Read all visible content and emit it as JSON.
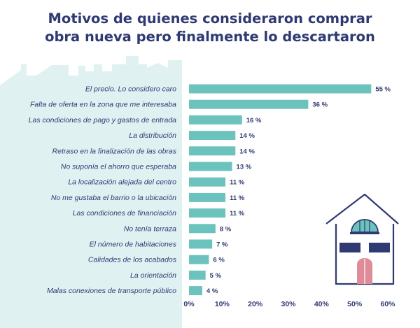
{
  "chart_data": {
    "type": "bar",
    "orientation": "horizontal",
    "title": "Motivos de quienes consideraron comprar obra nueva pero finalmente lo descartaron",
    "title_lines": [
      "Motivos de quienes consideraron comprar",
      "obra nueva pero finalmente lo descartaron"
    ],
    "categories": [
      "El precio. Lo considero caro",
      "Falta de oferta en la zona que me interesaba",
      "Las condiciones de pago y gastos de entrada",
      "La distribución",
      "Retraso en la finalización de las obras",
      "No suponía el ahorro que esperaba",
      "La localización alejada del centro",
      "No me gustaba el barrio o la ubicación",
      "Las condiciones de financiación",
      "No tenía terraza",
      "El número de habitaciones",
      "Calidades de los acabados",
      "La orientación",
      "Malas conexiones de transporte público"
    ],
    "values": [
      55,
      36,
      16,
      14,
      14,
      13,
      11,
      11,
      11,
      8,
      7,
      6,
      5,
      4
    ],
    "value_labels": [
      "55 %",
      "36 %",
      "16 %",
      "14 %",
      "14 %",
      "13 %",
      "11 %",
      "11 %",
      "11 %",
      "8 %",
      "7 %",
      "6 %",
      "5 %",
      "4 %"
    ],
    "ticks": [
      0,
      10,
      20,
      30,
      40,
      50,
      60
    ],
    "tick_labels": [
      "0%",
      "10%",
      "20%",
      "30%",
      "40%",
      "50%",
      "60%"
    ],
    "xlim": [
      0,
      60
    ],
    "xlabel": "",
    "ylabel": "",
    "grid": false,
    "legend": "none",
    "colors": {
      "bar": "#6cc3bd",
      "text": "#2f3a73",
      "background_panel": "#dff1f1",
      "house_outline": "#2f3a73",
      "house_window": "#2f3a73",
      "house_door": "#e08c98",
      "house_arch": "#6cc3bd"
    }
  }
}
